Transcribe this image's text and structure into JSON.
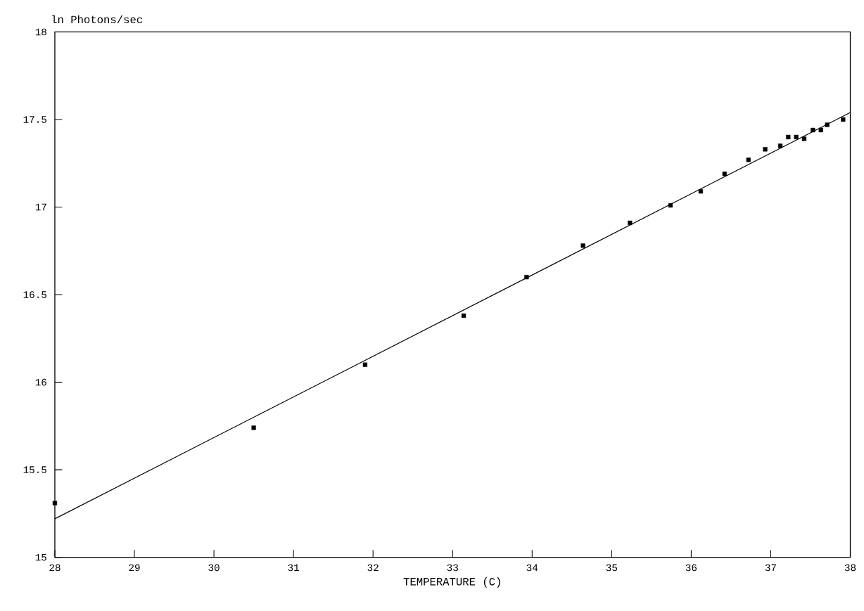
{
  "chart_data": {
    "type": "scatter",
    "xlabel": "TEMPERATURE (C)",
    "ylabel": "ln Photons/sec",
    "xlim": [
      28,
      38
    ],
    "xticks": [
      28,
      29,
      30,
      31,
      32,
      33,
      34,
      35,
      36,
      37,
      38
    ],
    "ylim": [
      15,
      18
    ],
    "yticks": [
      15,
      15.5,
      16,
      16.5,
      17,
      17.5,
      18
    ],
    "grid": false,
    "series": [
      {
        "marker": "square",
        "color": "#000000",
        "x": [
          28.0,
          30.5,
          31.9,
          33.14,
          33.93,
          34.64,
          35.23,
          35.74,
          36.12,
          36.42,
          36.72,
          36.93,
          37.12,
          37.22,
          37.32,
          37.42,
          37.53,
          37.63,
          37.71,
          37.91
        ],
        "values": [
          15.31,
          15.74,
          16.1,
          16.38,
          16.6,
          16.78,
          16.91,
          17.01,
          17.09,
          17.19,
          17.27,
          17.33,
          17.35,
          17.4,
          17.4,
          17.39,
          17.44,
          17.44,
          17.47,
          17.5
        ]
      },
      {
        "type": "line",
        "marker": "none",
        "line_style": "solid",
        "color": "#000000",
        "x": [
          28,
          38
        ],
        "values": [
          15.22,
          17.54
        ]
      }
    ]
  }
}
